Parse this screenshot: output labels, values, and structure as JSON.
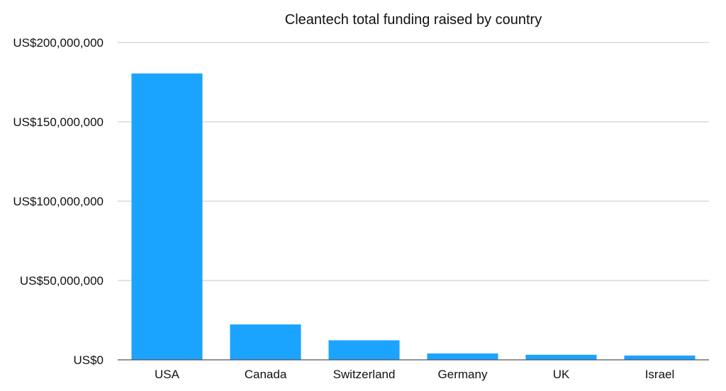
{
  "chart_data": {
    "type": "bar",
    "title": "Cleantech total funding raised by country",
    "xlabel": "",
    "ylabel": "",
    "categories": [
      "USA",
      "Canada",
      "Switzerland",
      "Germany",
      "UK",
      "Israel"
    ],
    "values": [
      180500000,
      22300000,
      12300000,
      4000000,
      3200000,
      2700000
    ],
    "ylim": [
      0,
      200000000
    ],
    "yticks": [
      0,
      50000000,
      100000000,
      150000000,
      200000000
    ],
    "ytick_labels": [
      "US$0",
      "US$50,000,000",
      "US$100,000,000",
      "US$150,000,000",
      "US$200,000,000"
    ],
    "grid": true,
    "legend": "none",
    "colors": {
      "bar": "#1aa3ff"
    }
  }
}
